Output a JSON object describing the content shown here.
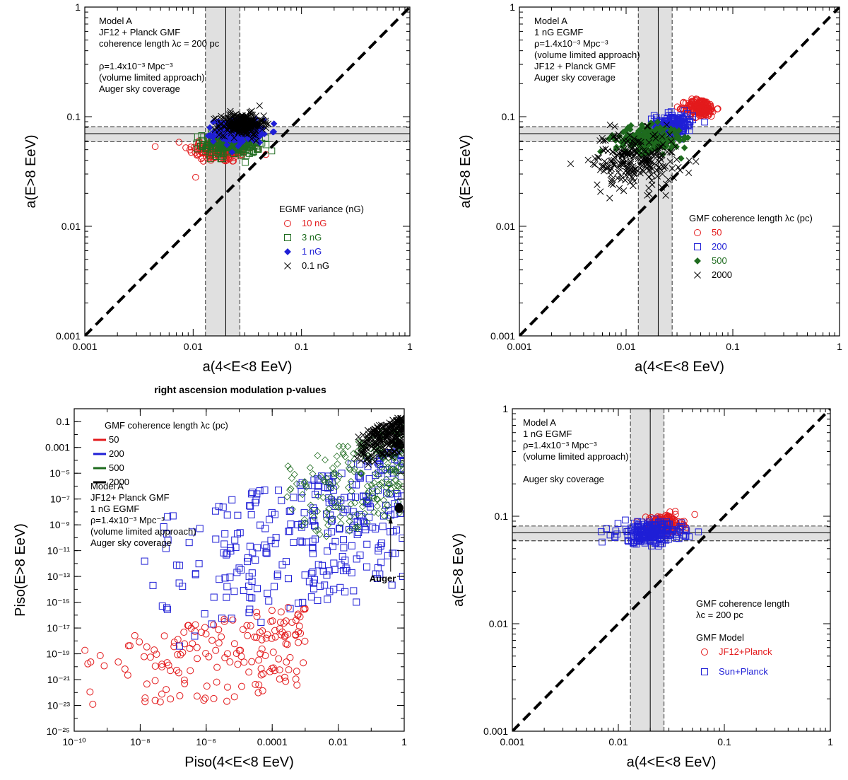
{
  "figure_title": "right ascension modulation p-values",
  "colors": {
    "red": "#e31a1c",
    "blue": "#1f1fd6",
    "green": "#1e6b1e",
    "black": "#000000",
    "band": "#d8d8d8"
  },
  "chart_data": [
    {
      "type": "scatter",
      "title": "",
      "xlabel": "a(4<E<8 EeV)",
      "ylabel": "a(E>8 EeV)",
      "xscale": "log",
      "yscale": "log",
      "xlim": [
        0.001,
        1
      ],
      "ylim": [
        0.001,
        1
      ],
      "xticks": [
        0.001,
        0.01,
        0.1,
        1
      ],
      "xtick_labels": [
        "0.001",
        "0.01",
        "0.1",
        "1"
      ],
      "yticks": [
        0.001,
        0.01,
        0.1,
        1
      ],
      "ytick_labels": [
        "0.001",
        "0.01",
        "0.1",
        "1"
      ],
      "diagonal": true,
      "auger_band_x": {
        "center": 0.02,
        "low": 0.013,
        "high": 0.027
      },
      "auger_band_y": {
        "center": 0.07,
        "low": 0.059,
        "high": 0.081
      },
      "annotation_lines": [
        "Model A",
        "JF12 + Planck GMF",
        "coherence length λc = 200 pc",
        "",
        "ρ=1.4x10⁻³ Mpc⁻³",
        "(volume limited approach)",
        "Auger sky coverage"
      ],
      "legend": {
        "title": "EGMF variance (nG)",
        "position": "center-right"
      },
      "series": [
        {
          "name": "10 nG",
          "marker": "circle",
          "color": "#e31a1c",
          "n": 180,
          "cx": 0.018,
          "cy": 0.05,
          "sx": 0.15,
          "sy": 0.06
        },
        {
          "name": "3 nG",
          "marker": "square",
          "color": "#1e6b1e",
          "n": 250,
          "cx": 0.023,
          "cy": 0.057,
          "sx": 0.13,
          "sy": 0.06
        },
        {
          "name": "1 nG",
          "marker": "diamond",
          "color": "#1f1fd6",
          "n": 220,
          "cx": 0.026,
          "cy": 0.074,
          "sx": 0.11,
          "sy": 0.05
        },
        {
          "name": "0.1 nG",
          "marker": "cross",
          "color": "#000000",
          "n": 260,
          "cx": 0.028,
          "cy": 0.085,
          "sx": 0.1,
          "sy": 0.05
        }
      ]
    },
    {
      "type": "scatter",
      "title": "",
      "xlabel": "a(4<E<8 EeV)",
      "ylabel": "a(E>8 EeV)",
      "xscale": "log",
      "yscale": "log",
      "xlim": [
        0.001,
        1
      ],
      "ylim": [
        0.001,
        1
      ],
      "xticks": [
        0.001,
        0.01,
        0.1,
        1
      ],
      "xtick_labels": [
        "0.001",
        "0.01",
        "0.1",
        "1"
      ],
      "yticks": [
        0.001,
        0.01,
        0.1,
        1
      ],
      "ytick_labels": [
        "0.001",
        "0.01",
        "0.1",
        "1"
      ],
      "diagonal": true,
      "auger_band_x": {
        "center": 0.02,
        "low": 0.013,
        "high": 0.027
      },
      "auger_band_y": {
        "center": 0.07,
        "low": 0.059,
        "high": 0.081
      },
      "annotation_lines": [
        "Model A",
        "1 nG  EGMF",
        "ρ=1.4x10⁻³ Mpc⁻³",
        "(volume limited approach)",
        "JF12 + Planck GMF",
        "Auger sky coverage"
      ],
      "legend": {
        "title": "GMF coherence length λc (pc)",
        "position": "center-right"
      },
      "series": [
        {
          "name": "50",
          "marker": "circle",
          "color": "#e31a1c",
          "n": 200,
          "cx": 0.05,
          "cy": 0.12,
          "sx": 0.07,
          "sy": 0.04
        },
        {
          "name": "200",
          "marker": "square",
          "color": "#1f1fd6",
          "n": 200,
          "cx": 0.028,
          "cy": 0.085,
          "sx": 0.09,
          "sy": 0.05
        },
        {
          "name": "500",
          "marker": "diamond",
          "color": "#1e6b1e",
          "n": 220,
          "cx": 0.016,
          "cy": 0.062,
          "sx": 0.15,
          "sy": 0.06
        },
        {
          "name": "2000",
          "marker": "cross",
          "color": "#000000",
          "n": 230,
          "cx": 0.012,
          "cy": 0.04,
          "sx": 0.2,
          "sy": 0.13
        }
      ]
    },
    {
      "type": "scatter",
      "title": "right ascension modulation p-values",
      "xlabel": "Piso(4<E<8 EeV)",
      "ylabel": "Piso(E>8 EeV)",
      "xscale": "log",
      "yscale": "log",
      "xlim": [
        1e-10,
        1
      ],
      "ylim": [
        1e-25,
        1
      ],
      "xticks": [
        1e-10,
        1e-08,
        1e-06,
        0.0001,
        0.01,
        1
      ],
      "xtick_labels": [
        "10⁻¹⁰",
        "10⁻⁸",
        "10⁻⁶",
        "0.0001",
        "0.01",
        "1"
      ],
      "yticks": [
        0.1,
        0.001,
        1e-05,
        1e-07,
        1e-09,
        1e-11,
        1e-13,
        1e-15,
        1e-17,
        1e-19,
        1e-21,
        1e-23,
        1e-25
      ],
      "ytick_labels": [
        "0.1",
        "0.001",
        "10⁻⁵",
        "10⁻⁷",
        "10⁻⁹",
        "10⁻¹¹",
        "10⁻¹³",
        "10⁻¹⁵",
        "10⁻¹⁷",
        "10⁻¹⁹",
        "10⁻²¹",
        "10⁻²³",
        "10⁻²⁵"
      ],
      "auger_point": {
        "x": 0.7,
        "y": 2e-08,
        "label": "Auger"
      },
      "annotation_lines": [
        "Model  A",
        "JF12+ Planck GMF",
        "1 nG EGMF",
        "ρ=1.4x10⁻³ Mpc⁻³",
        "(volume limited approach)",
        "Auger sky coverage"
      ],
      "legend": {
        "title": "GMF coherence length λc (pc)",
        "position": "top-left"
      },
      "series": [
        {
          "name": "50",
          "marker": "circle",
          "color": "#e31a1c",
          "n": 170,
          "xrange": [
            -10,
            -3
          ],
          "yrange": [
            -25,
            -15
          ]
        },
        {
          "name": "200",
          "marker": "square",
          "color": "#1f1fd6",
          "n": 320,
          "xrange": [
            -8,
            0
          ],
          "yrange": [
            -20,
            -3
          ]
        },
        {
          "name": "500",
          "marker": "diamond",
          "color": "#1e6b1e",
          "n": 220,
          "xrange": [
            -4,
            0
          ],
          "yrange": [
            -12,
            -1
          ]
        },
        {
          "name": "2000",
          "marker": "cross",
          "color": "#000000",
          "n": 230,
          "xrange": [
            -1.5,
            0
          ],
          "yrange": [
            -5,
            -0.5
          ]
        }
      ]
    },
    {
      "type": "scatter",
      "title": "",
      "xlabel": "a(4<E<8 EeV)",
      "ylabel": "a(E>8 EeV)",
      "xscale": "log",
      "yscale": "log",
      "xlim": [
        0.001,
        1
      ],
      "ylim": [
        0.001,
        1
      ],
      "xticks": [
        0.001,
        0.01,
        0.1,
        1
      ],
      "xtick_labels": [
        "0.001",
        "0.01",
        "0.1",
        "1"
      ],
      "yticks": [
        0.001,
        0.01,
        0.1,
        1
      ],
      "ytick_labels": [
        "0.001",
        "0.01",
        "0.1",
        "1"
      ],
      "diagonal": true,
      "auger_band_x": {
        "center": 0.02,
        "low": 0.013,
        "high": 0.027
      },
      "auger_band_y": {
        "center": 0.07,
        "low": 0.059,
        "high": 0.081
      },
      "annotation_lines": [
        "Model A",
        "1 nG  EGMF",
        "ρ=1.4x10⁻³ Mpc⁻³",
        "(volume limited approach)",
        "",
        "Auger sky coverage"
      ],
      "legend_header": [
        "GMF coherence length",
        "λc = 200 pc"
      ],
      "legend": {
        "title": "GMF Model",
        "position": "bottom-right"
      },
      "series": [
        {
          "name": "JF12+Planck",
          "marker": "circle",
          "color": "#e31a1c",
          "n": 220,
          "cx": 0.027,
          "cy": 0.085,
          "sx": 0.08,
          "sy": 0.04
        },
        {
          "name": "Sun+Planck",
          "marker": "square",
          "color": "#1f1fd6",
          "n": 250,
          "cx": 0.02,
          "cy": 0.07,
          "sx": 0.15,
          "sy": 0.05
        }
      ]
    }
  ]
}
